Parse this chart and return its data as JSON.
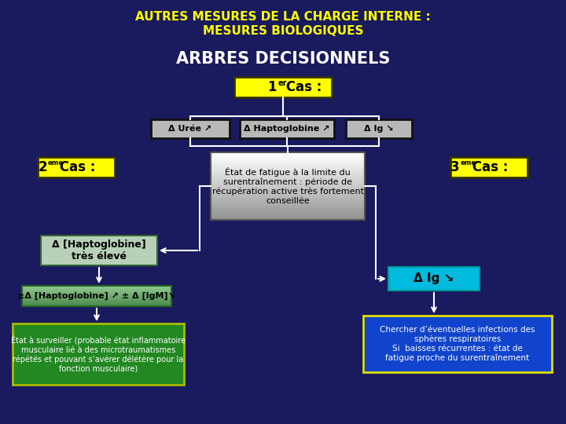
{
  "bg_color": "#1a1a5e",
  "title_line1": "AUTRES MESURES DE LA CHARGE INTERNE :",
  "title_line2": "MESURES BIOLOGIQUES",
  "title_color": "#ffff00",
  "subtitle": "ARBRES DECISIONNELS",
  "subtitle_color": "#ffffff",
  "box_uree": "Δ Urée ↗",
  "box_hapto": "Δ Haptoglobine ↗",
  "box_ig": "Δ Ig ↘",
  "center_box_text": "État de fatigue à la limite du\nsurentraînement : période de\nrécupération active très fortement\nconseillée",
  "hapto_box_text": "Δ [Haptoglobine]\ntrès élevé",
  "pm_hapto_text": "±Δ [Haptoglobine] ↗ ± Δ [IgM]↘",
  "bottom_left_text": "État à surveiller (probable état inflammatoire\nmusculaire lié à des microtraumatismes\nrépétés et pouvant s’avérer délétère pour la\nfonction musculaire)",
  "ig_box_text": "Δ Ig ↘",
  "bottom_right_text": "Chercher d’éventuelles infections des\nsphères respiratoires\nSi  baisses récurrentes : état de\nfatigue proche du surentraînement"
}
